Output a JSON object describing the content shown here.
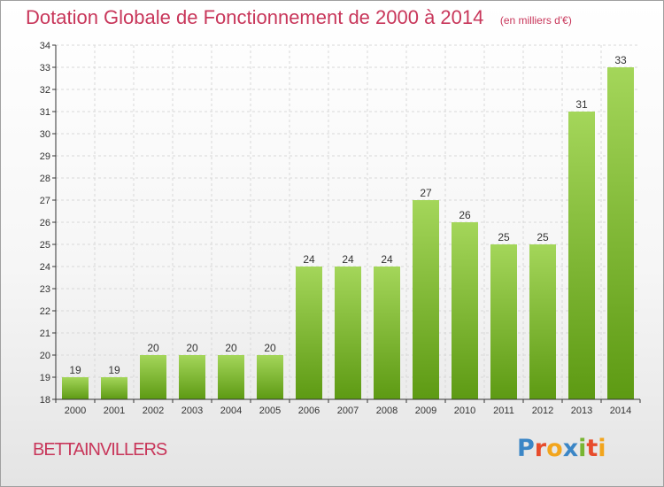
{
  "header": {
    "title": "Dotation Globale de Fonctionnement de 2000 à 2014",
    "unit": "(en milliers d'€)"
  },
  "footer": {
    "commune": "BETTAINVILLERS",
    "logo_text": "Proxiti",
    "logo_colors": [
      "#3b86c6",
      "#e74c2c",
      "#f2a51d",
      "#3b86c6",
      "#78b532",
      "#e74c2c",
      "#f2a51d"
    ]
  },
  "colors": {
    "title": "#c8365a",
    "bar_light": "#a4d65a",
    "bar_dark": "#5d9a13",
    "grid": "#d8d8d8",
    "axis": "#333333"
  },
  "chart_data": {
    "type": "bar",
    "categories": [
      "2000",
      "2001",
      "2002",
      "2003",
      "2004",
      "2005",
      "2006",
      "2007",
      "2008",
      "2009",
      "2010",
      "2011",
      "2012",
      "2013",
      "2014"
    ],
    "values": [
      19,
      19,
      20,
      20,
      20,
      20,
      24,
      24,
      24,
      27,
      26,
      25,
      25,
      31,
      33
    ],
    "data_labels": [
      "19",
      "19",
      "20",
      "20",
      "20",
      "20",
      "24",
      "24",
      "24",
      "27",
      "26",
      "25",
      "25",
      "31",
      "33"
    ],
    "ylim": [
      18,
      34
    ],
    "yticks": [
      18,
      19,
      20,
      21,
      22,
      23,
      24,
      25,
      26,
      27,
      28,
      29,
      30,
      31,
      32,
      33,
      34
    ],
    "grid": true,
    "legend": "none"
  }
}
